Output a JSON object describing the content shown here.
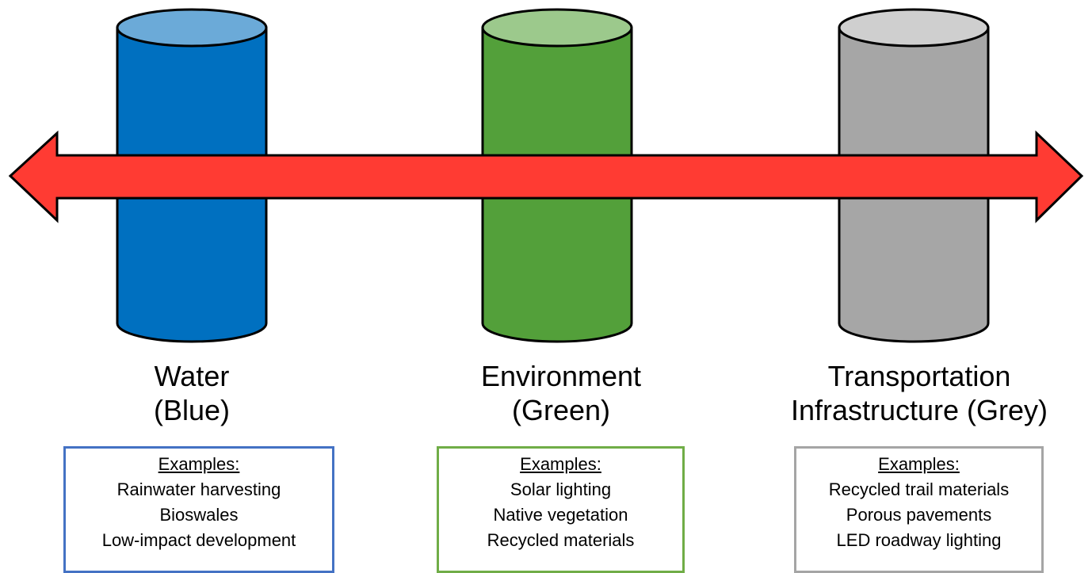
{
  "pillars": [
    {
      "title_lines": [
        "Water",
        "(Blue)"
      ],
      "examples_heading": "Examples:",
      "examples": [
        "Rainwater harvesting",
        "Bioswales",
        "Low-impact development"
      ],
      "body_color": "#0070c0",
      "top_color": "#6baad8",
      "box_border_color": "#4472c4"
    },
    {
      "title_lines": [
        "Environment",
        "(Green)"
      ],
      "examples_heading": "Examples:",
      "examples": [
        "Solar lighting",
        "Native vegetation",
        "Recycled materials"
      ],
      "body_color": "#53a03a",
      "top_color": "#9cc98c",
      "box_border_color": "#70ad47"
    },
    {
      "title_lines": [
        "Transportation",
        "Infrastructure (Grey)"
      ],
      "examples_heading": "Examples:",
      "examples": [
        "Recycled trail materials",
        "Porous pavements",
        "LED roadway lighting"
      ],
      "body_color": "#a6a6a6",
      "top_color": "#cfcfcf",
      "box_border_color": "#a5a5a5"
    }
  ],
  "arrow": {
    "color": "#ff3b33",
    "direction": "bidirectional"
  }
}
